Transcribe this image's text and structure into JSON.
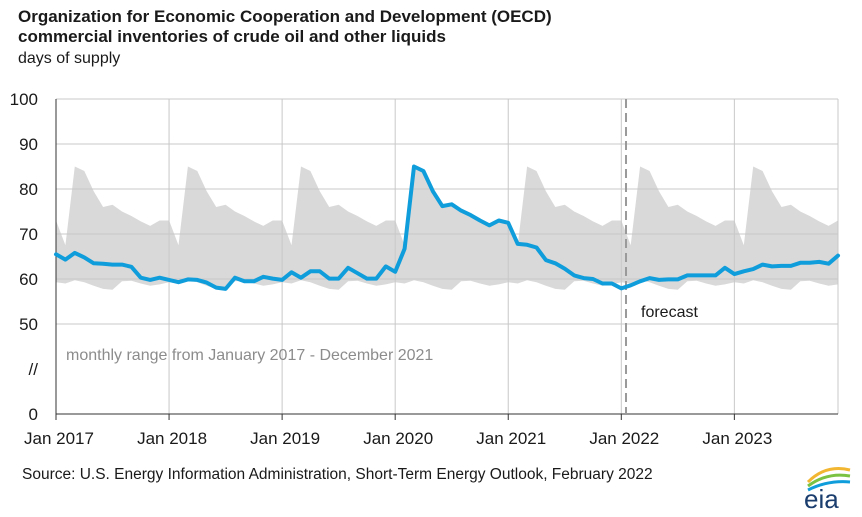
{
  "title_line1": "Organization for Economic Cooperation and Development (OECD)",
  "title_line2": "commercial inventories of crude oil and other liquids",
  "subtitle": "days of supply",
  "source": "Source: U.S. Energy Information Administration, Short-Term Energy Outlook, February 2022",
  "logo_text": "eia",
  "colors": {
    "line": "#0f9ddb",
    "band": "#d9d9d9",
    "grid": "#c8c8c8",
    "divider": "#9a9a9a"
  },
  "chart_data": {
    "type": "line",
    "ylim": [
      50,
      100
    ],
    "yticks": [
      {
        "value": 100,
        "label": "100"
      },
      {
        "value": 90,
        "label": "90"
      },
      {
        "value": 80,
        "label": "80"
      },
      {
        "value": 70,
        "label": "70"
      },
      {
        "value": 60,
        "label": "60"
      },
      {
        "value": 50,
        "label": "50"
      },
      {
        "value": null,
        "label": "//"
      },
      {
        "value": 0,
        "label": "0"
      }
    ],
    "xlim": [
      "2017-01",
      "2023-12"
    ],
    "xticks": [
      {
        "date": "2017-01",
        "label": "Jan 2017"
      },
      {
        "date": "2018-01",
        "label": "Jan 2018"
      },
      {
        "date": "2019-01",
        "label": "Jan 2019"
      },
      {
        "date": "2020-01",
        "label": "Jan 2020"
      },
      {
        "date": "2021-01",
        "label": "Jan 2021"
      },
      {
        "date": "2022-01",
        "label": "Jan 2022"
      },
      {
        "date": "2023-01",
        "label": "Jan 2023"
      }
    ],
    "range_band": {
      "label": "monthly range from January 2017 - December 2021",
      "months": [
        "Jan",
        "Feb",
        "Mar",
        "Apr",
        "May",
        "Jun",
        "Jul",
        "Aug",
        "Sep",
        "Oct",
        "Nov",
        "Dec"
      ],
      "min": [
        59.3,
        59.0,
        59.7,
        59.3,
        58.5,
        57.8,
        57.6,
        59.5,
        59.6,
        59.0,
        58.5,
        58.8
      ],
      "max": [
        73.0,
        67.5,
        85.0,
        84.0,
        79.5,
        76.0,
        76.5,
        75.0,
        74.0,
        72.8,
        71.8,
        73.0
      ]
    },
    "forecast": {
      "start": "2022-02",
      "label": "forecast"
    },
    "series": [
      {
        "start": "2017-01",
        "values": [
          65.5,
          64.3,
          65.8,
          64.8,
          63.5,
          63.4,
          63.2,
          63.2,
          62.7,
          60.3,
          59.8,
          60.3,
          59.8,
          59.3,
          59.9,
          59.8,
          59.2,
          58.1,
          57.8,
          60.3,
          59.5,
          59.5,
          60.5,
          60.1,
          59.8,
          61.5,
          60.3,
          61.7,
          61.7,
          60.1,
          60.1,
          62.5,
          61.3,
          60.1,
          60.1,
          62.8,
          61.6,
          66.7,
          85.0,
          84.0,
          79.5,
          76.2,
          76.6,
          75.2,
          74.2,
          73.0,
          71.9,
          73.0,
          72.5,
          67.8,
          67.6,
          67.0,
          64.2,
          63.5,
          62.3,
          60.8,
          60.2,
          60.0,
          59.0,
          59.0,
          57.9,
          58.6,
          59.5,
          60.2,
          59.8,
          59.9,
          59.9,
          60.8,
          60.8,
          60.8,
          60.8,
          62.5,
          61.1,
          61.7,
          62.2,
          63.2,
          62.8,
          62.9,
          62.9,
          63.6,
          63.6,
          63.8,
          63.4,
          65.2
        ]
      }
    ]
  }
}
